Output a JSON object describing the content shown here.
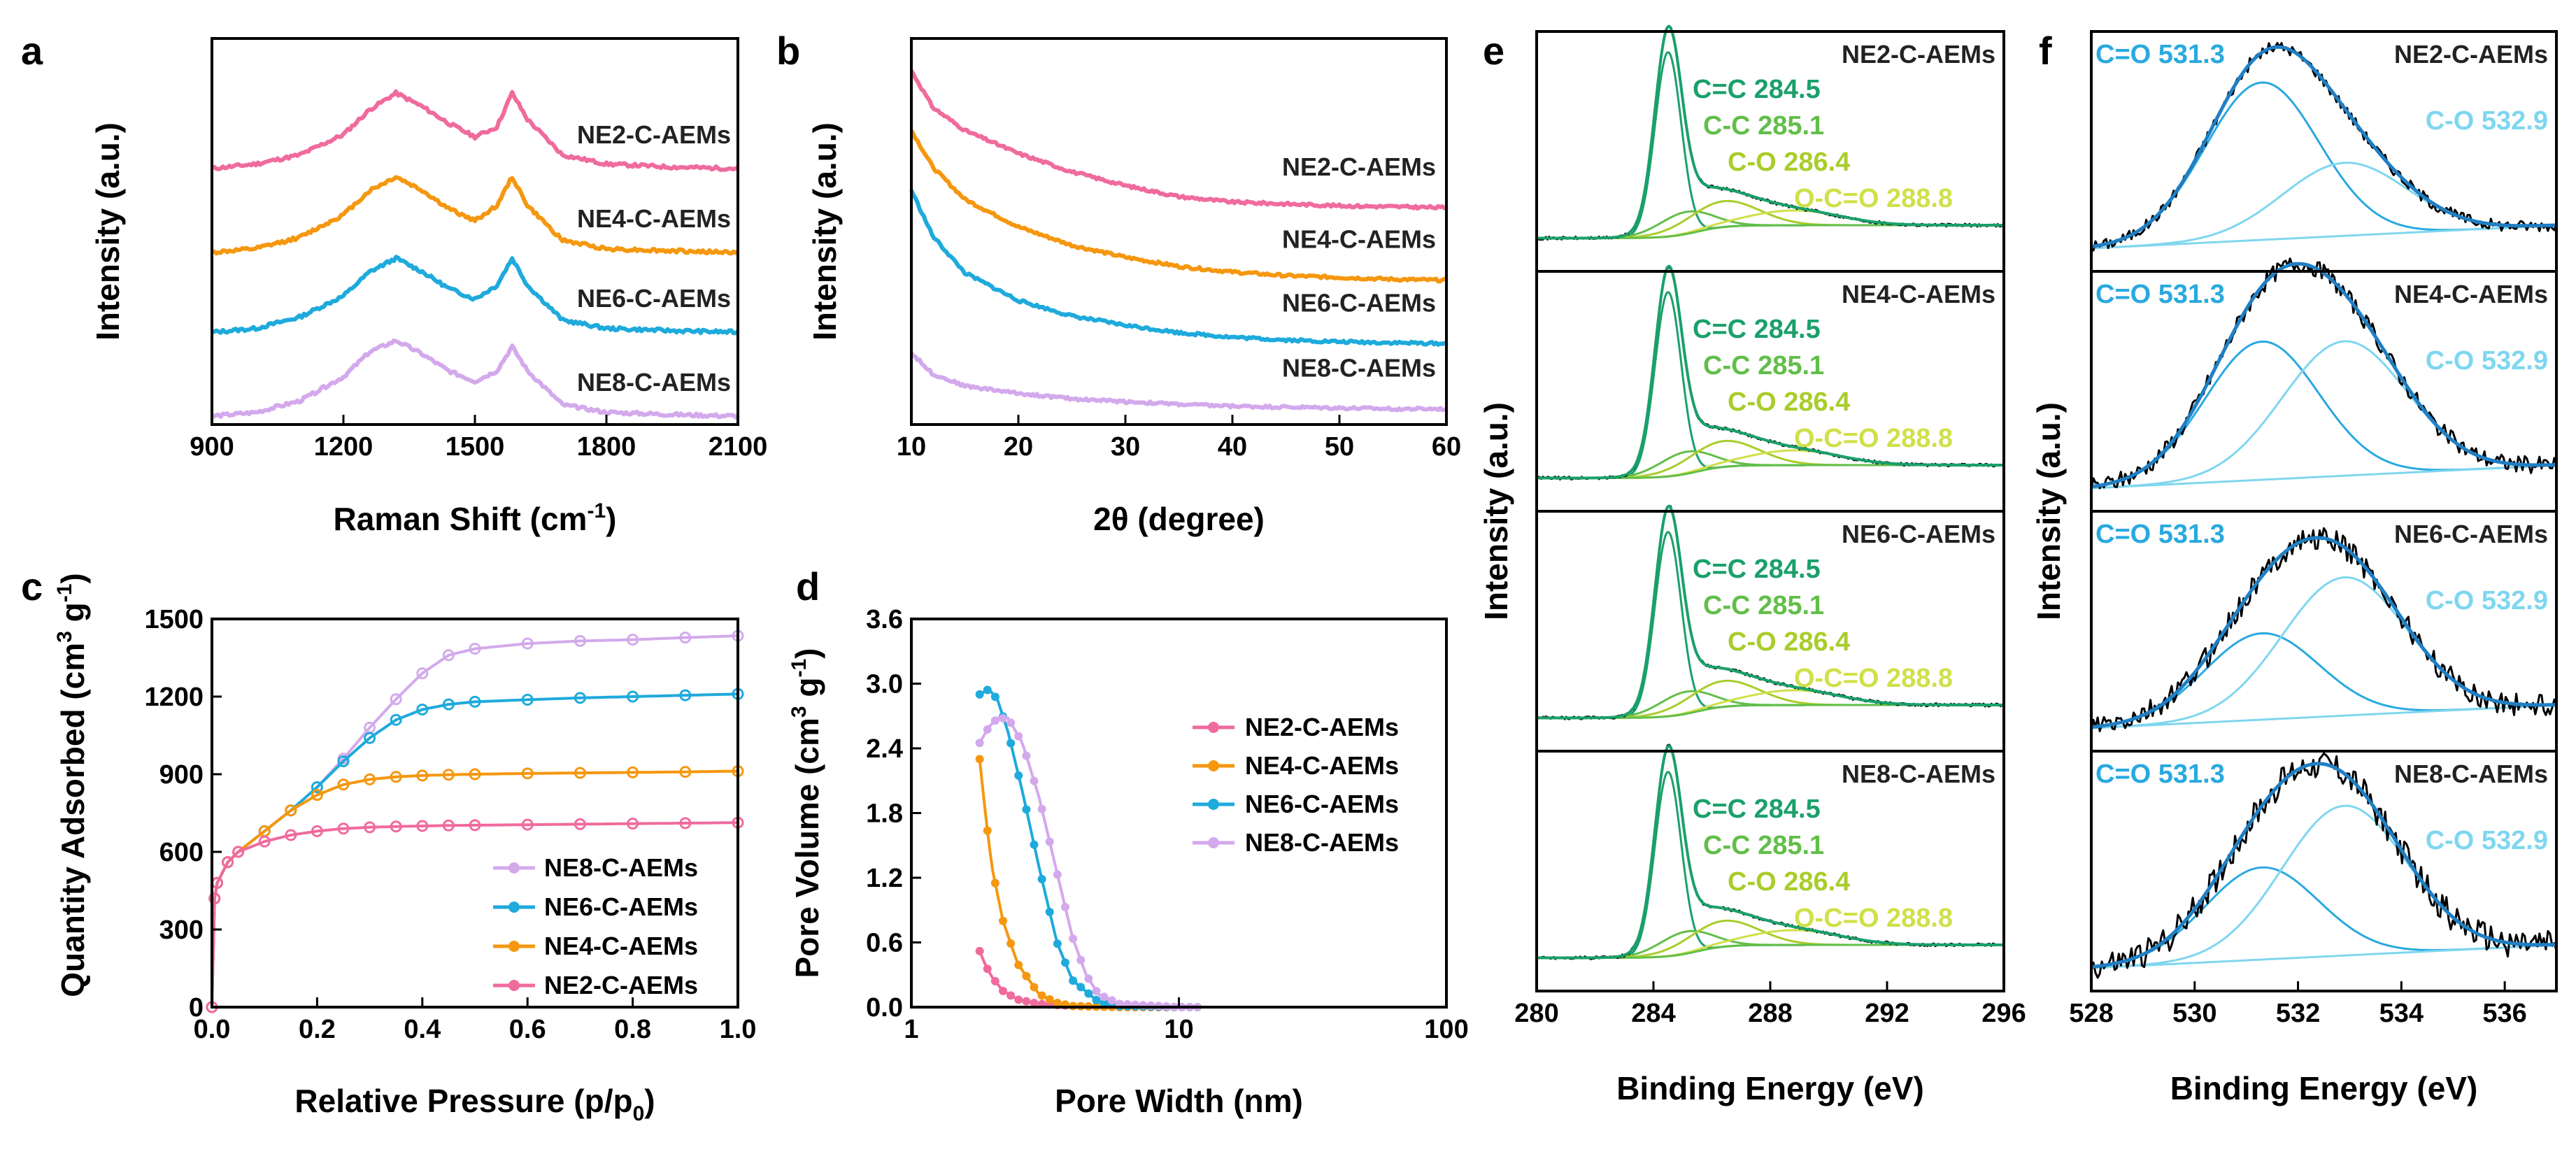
{
  "colors": {
    "NE2": "#f06b9d",
    "NE4": "#f5970f",
    "NE6": "#1eaadc",
    "NE8": "#d3a9ec",
    "xps_cc": "#1aa06b",
    "xps_cc2": "#62be49",
    "xps_co": "#a9cd2a",
    "xps_oco": "#cfe04a",
    "o_co_main": "#29a9e0",
    "o_co2": "#7fd6ef",
    "black": "#000000"
  },
  "chart_data": [
    {
      "panel": "a",
      "type": "line",
      "xlabel": "Raman Shift (cm",
      "xlabel_sup": "-1",
      "xlabel_end": ")",
      "ylabel": "Intensity (a.u.)",
      "xlim": [
        900,
        2100
      ],
      "xticks": [
        "900",
        "1200",
        "1500",
        "1800",
        "2100"
      ],
      "series": [
        {
          "name": "NE2-C-AEMs",
          "color_key": "NE2",
          "offset": 3.05,
          "x": [
            900,
            1000,
            1100,
            1200,
            1260,
            1320,
            1380,
            1440,
            1500,
            1550,
            1585,
            1620,
            1700,
            1800,
            1950,
            2100
          ],
          "y": [
            0.0,
            0.06,
            0.18,
            0.45,
            0.78,
            1.0,
            0.82,
            0.6,
            0.42,
            0.55,
            1.0,
            0.65,
            0.18,
            0.06,
            0.02,
            0.0
          ]
        },
        {
          "name": "NE4-C-AEMs",
          "color_key": "NE4",
          "offset": 2.05,
          "x": [
            900,
            1000,
            1100,
            1200,
            1260,
            1320,
            1380,
            1440,
            1500,
            1550,
            1585,
            1620,
            1700,
            1800,
            1950,
            2100
          ],
          "y": [
            0.0,
            0.05,
            0.2,
            0.5,
            0.82,
            1.0,
            0.82,
            0.58,
            0.42,
            0.62,
            1.0,
            0.62,
            0.16,
            0.05,
            0.02,
            0.0
          ]
        },
        {
          "name": "NE6-C-AEMs",
          "color_key": "NE6",
          "offset": 1.1,
          "x": [
            900,
            1000,
            1100,
            1200,
            1260,
            1320,
            1380,
            1440,
            1500,
            1550,
            1585,
            1620,
            1700,
            1800,
            1950,
            2100
          ],
          "y": [
            0.0,
            0.05,
            0.2,
            0.48,
            0.8,
            0.98,
            0.8,
            0.58,
            0.44,
            0.62,
            0.98,
            0.62,
            0.16,
            0.05,
            0.02,
            0.0
          ]
        },
        {
          "name": "NE8-C-AEMs",
          "color_key": "NE8",
          "offset": 0.1,
          "x": [
            900,
            1000,
            1100,
            1200,
            1260,
            1320,
            1380,
            1440,
            1500,
            1550,
            1585,
            1620,
            1700,
            1800,
            1950,
            2100
          ],
          "y": [
            0.0,
            0.05,
            0.2,
            0.52,
            0.85,
            1.0,
            0.82,
            0.6,
            0.46,
            0.6,
            0.92,
            0.6,
            0.15,
            0.05,
            0.02,
            0.0
          ]
        }
      ],
      "ylim": [
        0,
        4.6
      ]
    },
    {
      "panel": "b",
      "type": "line",
      "xlabel": "2θ (degree)",
      "ylabel": "Intensity (a.u.)",
      "xlim": [
        10,
        60
      ],
      "xticks": [
        "10",
        "20",
        "30",
        "40",
        "50",
        "60"
      ],
      "series": [
        {
          "name": "NE2-C-AEMs",
          "color_key": "NE2",
          "x": [
            10,
            12,
            15,
            20,
            25,
            30,
            35,
            40,
            45,
            50,
            55,
            60
          ],
          "y": [
            3.85,
            3.45,
            3.2,
            2.95,
            2.75,
            2.6,
            2.48,
            2.42,
            2.4,
            2.38,
            2.37,
            2.36
          ]
        },
        {
          "name": "NE4-C-AEMs",
          "color_key": "NE4",
          "x": [
            10,
            12,
            15,
            20,
            25,
            30,
            35,
            40,
            45,
            50,
            55,
            60
          ],
          "y": [
            3.2,
            2.8,
            2.45,
            2.15,
            1.95,
            1.82,
            1.72,
            1.66,
            1.62,
            1.6,
            1.58,
            1.57
          ]
        },
        {
          "name": "NE6-C-AEMs",
          "color_key": "NE6",
          "x": [
            10,
            12,
            15,
            20,
            25,
            30,
            35,
            40,
            45,
            50,
            55,
            60
          ],
          "y": [
            2.55,
            2.05,
            1.65,
            1.35,
            1.18,
            1.08,
            1.0,
            0.95,
            0.92,
            0.9,
            0.89,
            0.88
          ]
        },
        {
          "name": "NE8-C-AEMs",
          "color_key": "NE8",
          "x": [
            10,
            12,
            15,
            20,
            25,
            30,
            35,
            40,
            45,
            50,
            55,
            60
          ],
          "y": [
            0.78,
            0.55,
            0.42,
            0.34,
            0.28,
            0.25,
            0.22,
            0.2,
            0.19,
            0.18,
            0.17,
            0.17
          ]
        }
      ],
      "ylim": [
        0,
        4.2
      ]
    },
    {
      "panel": "c",
      "type": "line",
      "xlabel": "Relative Pressure (p/p",
      "xlabel_sub": "0",
      "xlabel_end": ")",
      "ylabel": "Quantity Adsorbed (cm",
      "ylabel_sup1": "3",
      "ylabel_mid": " g",
      "ylabel_sup2": "-1",
      "ylabel_end": ")",
      "xlim": [
        0,
        1.0
      ],
      "ylim": [
        0,
        1500
      ],
      "xticks": [
        "0.0",
        "0.2",
        "0.4",
        "0.6",
        "0.8",
        "1.0"
      ],
      "yticks": [
        "0",
        "300",
        "600",
        "900",
        "1200",
        "1500"
      ],
      "legend": [
        "NE8-C-AEMs",
        "NE6-C-AEMs",
        "NE4-C-AEMs",
        "NE2-C-AEMs"
      ],
      "series": [
        {
          "name": "NE8-C-AEMs",
          "color_key": "NE8",
          "x": [
            0,
            0.005,
            0.01,
            0.03,
            0.05,
            0.1,
            0.15,
            0.2,
            0.25,
            0.3,
            0.35,
            0.4,
            0.45,
            0.5,
            0.6,
            0.7,
            0.8,
            0.9,
            1.0
          ],
          "y": [
            0,
            420,
            480,
            560,
            600,
            680,
            760,
            850,
            960,
            1080,
            1190,
            1290,
            1360,
            1385,
            1405,
            1415,
            1420,
            1428,
            1435
          ]
        },
        {
          "name": "NE6-C-AEMs",
          "color_key": "NE6",
          "x": [
            0,
            0.005,
            0.01,
            0.03,
            0.05,
            0.1,
            0.15,
            0.2,
            0.25,
            0.3,
            0.35,
            0.4,
            0.45,
            0.5,
            0.6,
            0.7,
            0.8,
            0.9,
            1.0
          ],
          "y": [
            0,
            420,
            480,
            560,
            600,
            680,
            760,
            850,
            950,
            1040,
            1110,
            1150,
            1170,
            1180,
            1188,
            1195,
            1200,
            1205,
            1210
          ]
        },
        {
          "name": "NE4-C-AEMs",
          "color_key": "NE4",
          "x": [
            0,
            0.005,
            0.01,
            0.03,
            0.05,
            0.1,
            0.15,
            0.2,
            0.25,
            0.3,
            0.35,
            0.4,
            0.45,
            0.5,
            0.6,
            0.7,
            0.8,
            0.9,
            1.0
          ],
          "y": [
            0,
            420,
            480,
            560,
            600,
            680,
            760,
            820,
            860,
            880,
            890,
            895,
            898,
            900,
            903,
            905,
            907,
            909,
            912
          ]
        },
        {
          "name": "NE2-C-AEMs",
          "color_key": "NE2",
          "x": [
            0,
            0.005,
            0.01,
            0.03,
            0.05,
            0.1,
            0.15,
            0.2,
            0.25,
            0.3,
            0.35,
            0.4,
            0.45,
            0.5,
            0.6,
            0.7,
            0.8,
            0.9,
            1.0
          ],
          "y": [
            0,
            420,
            480,
            560,
            600,
            640,
            665,
            680,
            690,
            695,
            698,
            700,
            702,
            703,
            705,
            707,
            709,
            711,
            713
          ]
        }
      ]
    },
    {
      "panel": "d",
      "type": "line",
      "xscale": "log",
      "xlabel": "Pore Width (nm)",
      "ylabel": "Pore Volume (cm",
      "ylabel_sup1": "3",
      "ylabel_mid": " g",
      "ylabel_sup2": "-1",
      "ylabel_end": ")",
      "xlim": [
        1,
        100
      ],
      "ylim": [
        0,
        3.6
      ],
      "xticks": [
        "1",
        "10",
        "100"
      ],
      "yticks": [
        "0.0",
        "0.6",
        "1.2",
        "1.8",
        "2.4",
        "3.0",
        "3.6"
      ],
      "legend": [
        "NE2-C-AEMs",
        "NE4-C-AEMs",
        "NE6-C-AEMs",
        "NE8-C-AEMs"
      ],
      "series": [
        {
          "name": "NE2-C-AEMs",
          "color_key": "NE2",
          "x": [
            1.8,
            1.9,
            2.0,
            2.2,
            2.5,
            3.0,
            4.0,
            6.0,
            10,
            30,
            100
          ],
          "y": [
            0.52,
            0.38,
            0.28,
            0.15,
            0.07,
            0.03,
            0.01,
            0.0,
            0.0,
            0.0,
            0.0
          ]
        },
        {
          "name": "NE4-C-AEMs",
          "color_key": "NE4",
          "x": [
            1.8,
            1.9,
            2.0,
            2.2,
            2.5,
            3.0,
            3.5,
            4.0,
            6.0,
            10,
            30,
            100
          ],
          "y": [
            2.3,
            1.75,
            1.3,
            0.8,
            0.4,
            0.12,
            0.04,
            0.01,
            0.0,
            0.0,
            0.0,
            0.0
          ]
        },
        {
          "name": "NE6-C-AEMs",
          "color_key": "NE6",
          "x": [
            1.8,
            1.95,
            2.1,
            2.3,
            2.6,
            3.0,
            3.5,
            4.0,
            5.0,
            6.0,
            10,
            30,
            100
          ],
          "y": [
            2.9,
            2.95,
            2.85,
            2.55,
            2.0,
            1.3,
            0.6,
            0.25,
            0.05,
            0.01,
            0.0,
            0.0,
            0.0
          ]
        },
        {
          "name": "NE8-C-AEMs",
          "color_key": "NE8",
          "x": [
            1.8,
            1.95,
            2.1,
            2.3,
            2.6,
            3.0,
            3.5,
            4.0,
            4.5,
            5.0,
            6.0,
            10,
            30,
            100
          ],
          "y": [
            2.45,
            2.6,
            2.68,
            2.68,
            2.45,
            1.95,
            1.25,
            0.65,
            0.3,
            0.12,
            0.03,
            0.0,
            0.0,
            0.0
          ]
        }
      ]
    },
    {
      "panel": "e",
      "type": "line",
      "xlabel": "Binding Energy (eV)",
      "ylabel": "Intensity (a.u.)",
      "xlim": [
        280,
        296
      ],
      "xticks": [
        "280",
        "284",
        "288",
        "292",
        "296"
      ],
      "subpanels": [
        {
          "name": "NE2-C-AEMs",
          "labels": [
            "C=C 284.5",
            "C-C 285.1",
            "C-O 286.4",
            "O-C=O 288.8"
          ]
        },
        {
          "name": "NE4-C-AEMs",
          "labels": [
            "C=C 284.5",
            "C-C 285.1",
            "C-O 286.4",
            "O-C=O 288.8"
          ]
        },
        {
          "name": "NE6-C-AEMs",
          "labels": [
            "C=C 284.5",
            "C-C 285.1",
            "C-O 286.4",
            "O-C=O 288.8"
          ]
        },
        {
          "name": "NE8-C-AEMs",
          "labels": [
            "C=C 284.5",
            "C-C 285.1",
            "C-O 286.4",
            "O-C=O 288.8"
          ]
        }
      ],
      "components": [
        {
          "label": "C=C 284.5",
          "center": 284.5,
          "width": 0.45,
          "amp": 1.0,
          "color_key": "xps_cc"
        },
        {
          "label": "C-C 285.1",
          "center": 285.1,
          "width": 0.9,
          "amp": 0.12,
          "color_key": "xps_cc2"
        },
        {
          "label": "C-O 286.4",
          "center": 286.4,
          "width": 1.2,
          "amp": 0.14,
          "color_key": "xps_co"
        },
        {
          "label": "O-C=O 288.8",
          "center": 288.8,
          "width": 1.6,
          "amp": 0.08,
          "color_key": "xps_oco"
        }
      ]
    },
    {
      "panel": "f",
      "type": "line",
      "xlabel": "Binding Energy (eV)",
      "ylabel": "Intensity (a.u.)",
      "xlim": [
        528,
        537
      ],
      "xticks": [
        "528",
        "530",
        "532",
        "534",
        "536"
      ],
      "subpanels": [
        {
          "name": "NE2-C-AEMs",
          "labels": [
            "C=O 531.3",
            "C-O 532.9"
          ],
          "amps": [
            0.82,
            0.38
          ]
        },
        {
          "name": "NE4-C-AEMs",
          "labels": [
            "C=O 531.3",
            "C-O 532.9"
          ],
          "amps": [
            0.72,
            0.7
          ]
        },
        {
          "name": "NE6-C-AEMs",
          "labels": [
            "C=O 531.3",
            "C-O 532.9"
          ],
          "amps": [
            0.45,
            0.72
          ]
        },
        {
          "name": "NE8-C-AEMs",
          "labels": [
            "C=O 531.3",
            "C-O 532.9"
          ],
          "amps": [
            0.48,
            0.78
          ]
        }
      ],
      "components": [
        {
          "label": "C=O 531.3",
          "center": 531.3,
          "width": 1.1,
          "color_key": "o_co_main"
        },
        {
          "label": "C-O 532.9",
          "center": 532.9,
          "width": 1.2,
          "color_key": "o_co2"
        }
      ]
    }
  ],
  "panel_letters": [
    "a",
    "b",
    "c",
    "d",
    "e",
    "f"
  ]
}
